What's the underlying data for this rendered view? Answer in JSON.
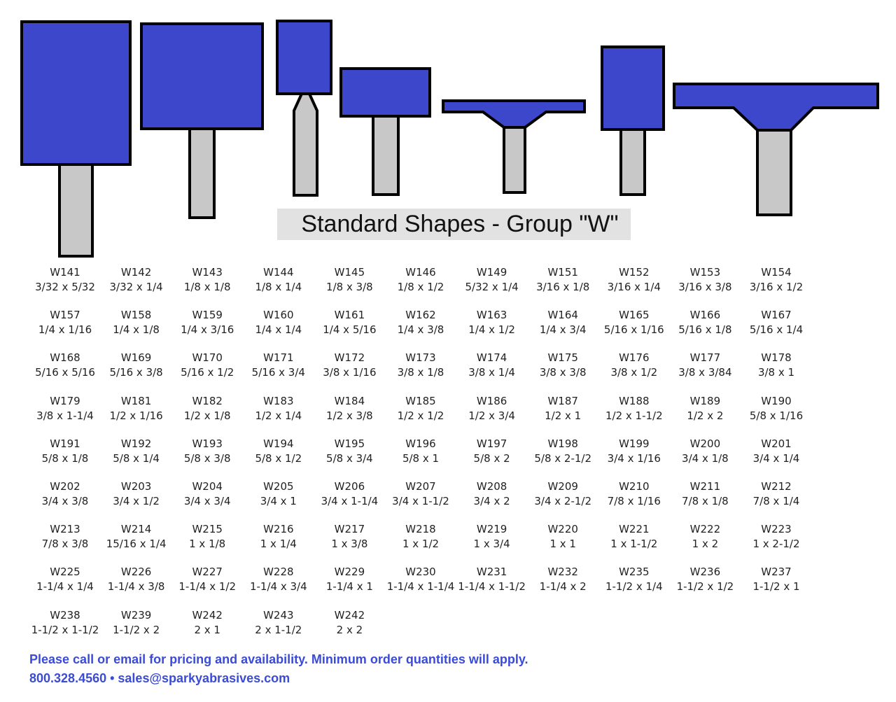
{
  "title": "Standard Shapes - Group \"W\"",
  "items": [
    [
      "W141",
      "3/32 x 5/32"
    ],
    [
      "W142",
      "3/32 x 1/4"
    ],
    [
      "W143",
      "1/8 x 1/8"
    ],
    [
      "W144",
      "1/8 x 1/4"
    ],
    [
      "W145",
      "1/8 x 3/8"
    ],
    [
      "W146",
      "1/8 x 1/2"
    ],
    [
      "W149",
      "5/32 x 1/4"
    ],
    [
      "W151",
      "3/16 x 1/8"
    ],
    [
      "W152",
      "3/16 x 1/4"
    ],
    [
      "W153",
      "3/16 x 3/8"
    ],
    [
      "W154",
      "3/16 x 1/2"
    ],
    [
      "W157",
      "1/4 x 1/16"
    ],
    [
      "W158",
      "1/4 x 1/8"
    ],
    [
      "W159",
      "1/4 x 3/16"
    ],
    [
      "W160",
      "1/4 x 1/4"
    ],
    [
      "W161",
      "1/4 x 5/16"
    ],
    [
      "W162",
      "1/4 x 3/8"
    ],
    [
      "W163",
      "1/4 x 1/2"
    ],
    [
      "W164",
      "1/4 x 3/4"
    ],
    [
      "W165",
      "5/16 x 1/16"
    ],
    [
      "W166",
      "5/16 x 1/8"
    ],
    [
      "W167",
      "5/16 x 1/4"
    ],
    [
      "W168",
      "5/16 x 5/16"
    ],
    [
      "W169",
      "5/16 x 3/8"
    ],
    [
      "W170",
      "5/16 x 1/2"
    ],
    [
      "W171",
      "5/16 x 3/4"
    ],
    [
      "W172",
      "3/8 x 1/16"
    ],
    [
      "W173",
      "3/8 x 1/8"
    ],
    [
      "W174",
      "3/8 x 1/4"
    ],
    [
      "W175",
      "3/8 x 3/8"
    ],
    [
      "W176",
      "3/8 x 1/2"
    ],
    [
      "W177",
      "3/8 x 3/84"
    ],
    [
      "W178",
      "3/8 x 1"
    ],
    [
      "W179",
      "3/8 x 1-1/4"
    ],
    [
      "W181",
      "1/2 x 1/16"
    ],
    [
      "W182",
      "1/2 x 1/8"
    ],
    [
      "W183",
      "1/2 x 1/4"
    ],
    [
      "W184",
      "1/2 x 3/8"
    ],
    [
      "W185",
      "1/2 x 1/2"
    ],
    [
      "W186",
      "1/2 x 3/4"
    ],
    [
      "W187",
      "1/2 x 1"
    ],
    [
      "W188",
      "1/2 x 1-1/2"
    ],
    [
      "W189",
      "1/2 x 2"
    ],
    [
      "W190",
      "5/8 x 1/16"
    ],
    [
      "W191",
      "5/8 x 1/8"
    ],
    [
      "W192",
      "5/8 x 1/4"
    ],
    [
      "W193",
      "5/8 x 3/8"
    ],
    [
      "W194",
      "5/8 x 1/2"
    ],
    [
      "W195",
      "5/8 x 3/4"
    ],
    [
      "W196",
      "5/8 x 1"
    ],
    [
      "W197",
      "5/8 x 2"
    ],
    [
      "W198",
      "5/8 x 2-1/2"
    ],
    [
      "W199",
      "3/4 x 1/16"
    ],
    [
      "W200",
      "3/4 x 1/8"
    ],
    [
      "W201",
      "3/4 x 1/4"
    ],
    [
      "W202",
      "3/4 x 3/8"
    ],
    [
      "W203",
      "3/4 x 1/2"
    ],
    [
      "W204",
      "3/4 x 3/4"
    ],
    [
      "W205",
      "3/4 x 1"
    ],
    [
      "W206",
      "3/4 x 1-1/4"
    ],
    [
      "W207",
      "3/4 x 1-1/2"
    ],
    [
      "W208",
      "3/4 x 2"
    ],
    [
      "W209",
      "3/4 x 2-1/2"
    ],
    [
      "W210",
      "7/8 x 1/16"
    ],
    [
      "W211",
      "7/8 x 1/8"
    ],
    [
      "W212",
      "7/8 x 1/4"
    ],
    [
      "W213",
      "7/8 x 3/8"
    ],
    [
      "W214",
      "15/16 x 1/4"
    ],
    [
      "W215",
      "1 x 1/8"
    ],
    [
      "W216",
      "1 x 1/4"
    ],
    [
      "W217",
      "1 x 3/8"
    ],
    [
      "W218",
      "1 x 1/2"
    ],
    [
      "W219",
      "1 x 3/4"
    ],
    [
      "W220",
      "1 x 1"
    ],
    [
      "W221",
      "1 x 1-1/2"
    ],
    [
      "W222",
      "1 x 2"
    ],
    [
      "W223",
      "1 x 2-1/2"
    ],
    [
      "W225",
      "1-1/4 x 1/4"
    ],
    [
      "W226",
      "1-1/4 x 3/8"
    ],
    [
      "W227",
      "1-1/4 x 1/2"
    ],
    [
      "W228",
      "1-1/4 x 3/4"
    ],
    [
      "W229",
      "1-1/4 x 1"
    ],
    [
      "W230",
      "1-1/4 x 1-1/4"
    ],
    [
      "W231",
      "1-1/4 x 1-1/2"
    ],
    [
      "W232",
      "1-1/4 x 2"
    ],
    [
      "W235",
      "1-1/2 x 1/4"
    ],
    [
      "W236",
      "1-1/2 x 1/2"
    ],
    [
      "W237",
      "1-1/2 x 1"
    ],
    [
      "W238",
      "1-1/2 x 1-1/2"
    ],
    [
      "W239",
      "1-1/2 x 2"
    ],
    [
      "W242",
      "2 x 1"
    ],
    [
      "W243",
      "2 x 1-1/2"
    ],
    [
      "W242",
      "2 x 2"
    ]
  ],
  "footer": [
    "Please call or email for pricing and availability. Minimum order quantities will apply.",
    "800.328.4560 • sales@sparkyabrasives.com"
  ]
}
